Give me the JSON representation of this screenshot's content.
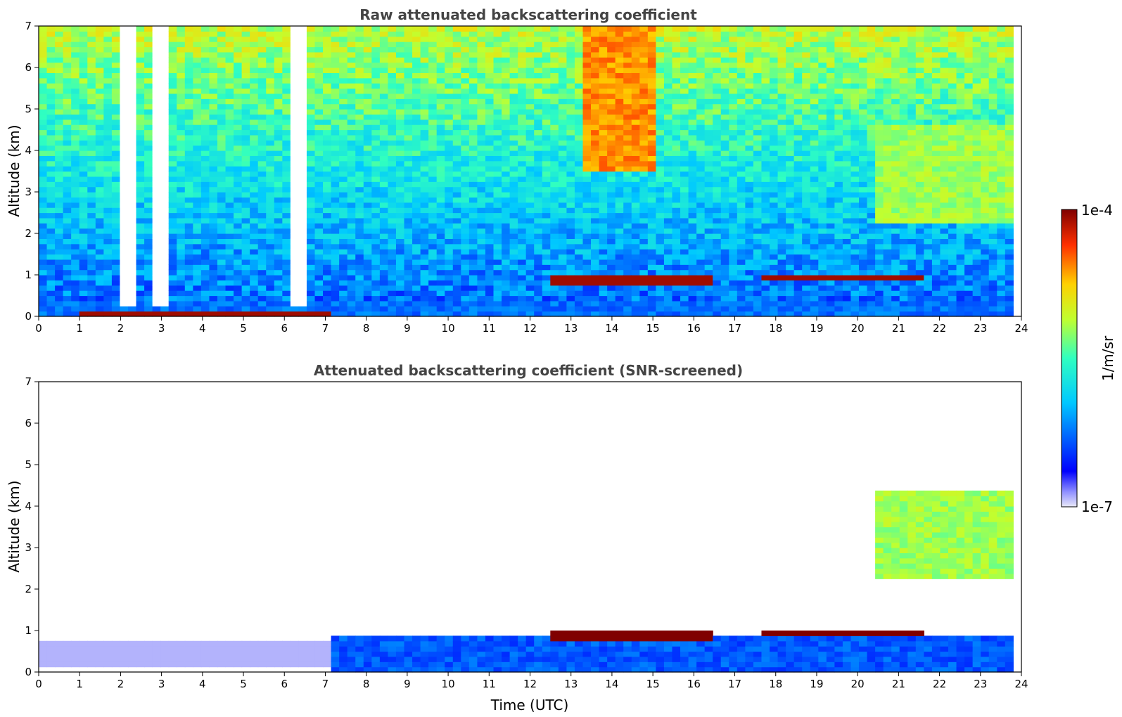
{
  "chart_data": [
    {
      "type": "heatmap",
      "title": "Raw attenuated backscattering coefficient",
      "xlabel": "",
      "ylabel": "Altitude (km)",
      "xlim": [
        0,
        24
      ],
      "ylim": [
        0,
        7
      ],
      "xticks": [
        "0",
        "1",
        "2",
        "3",
        "4",
        "5",
        "6",
        "7",
        "8",
        "9",
        "10",
        "11",
        "12",
        "13",
        "14",
        "15",
        "16",
        "17",
        "18",
        "19",
        "20",
        "21",
        "22",
        "23",
        "24"
      ],
      "yticks": [
        "0",
        "1",
        "2",
        "3",
        "4",
        "5",
        "6",
        "7"
      ],
      "data_end_time": 23.8,
      "features": [
        {
          "kind": "surface_layer",
          "x": [
            0,
            23.8
          ],
          "y": [
            0,
            0.4
          ],
          "level": 0.25
        },
        {
          "kind": "near_ground_strong_layer",
          "x": [
            0.9,
            7.1
          ],
          "y": [
            0,
            0.07
          ],
          "level": 0.97
        },
        {
          "kind": "low_signal_precipitation",
          "x": [
            1.9,
            2.3
          ],
          "y": [
            0.2,
            7
          ],
          "level": 0.0
        },
        {
          "kind": "low_signal_precipitation",
          "x": [
            2.7,
            3.2
          ],
          "y": [
            0.2,
            7
          ],
          "level": 0.0
        },
        {
          "kind": "low_signal_precipitation",
          "x": [
            6.1,
            6.5
          ],
          "y": [
            0.2,
            7
          ],
          "level": 0.0
        },
        {
          "kind": "cloud_layer",
          "x": [
            12.4,
            16.4
          ],
          "y": [
            0.78,
            1.02
          ],
          "level": 0.97
        },
        {
          "kind": "cloud_layer",
          "x": [
            17.6,
            21.7
          ],
          "y": [
            0.82,
            0.95
          ],
          "level": 0.97
        },
        {
          "kind": "cirrus",
          "x": [
            20.5,
            23.8
          ],
          "y": [
            2.2,
            4.6
          ],
          "level": 0.6
        },
        {
          "kind": "aerosol_upper",
          "x": [
            13.2,
            15.0
          ],
          "y": [
            3.5,
            7
          ],
          "level": 0.8
        }
      ]
    },
    {
      "type": "heatmap",
      "title": "Attenuated backscattering coefficient (SNR-screened)",
      "xlabel": "Time (UTC)",
      "ylabel": "Altitude (km)",
      "xlim": [
        0,
        24
      ],
      "ylim": [
        0,
        7
      ],
      "xticks": [
        "0",
        "1",
        "2",
        "3",
        "4",
        "5",
        "6",
        "7",
        "8",
        "9",
        "10",
        "11",
        "12",
        "13",
        "14",
        "15",
        "16",
        "17",
        "18",
        "19",
        "20",
        "21",
        "22",
        "23",
        "24"
      ],
      "yticks": [
        "0",
        "1",
        "2",
        "3",
        "4",
        "5",
        "6",
        "7"
      ],
      "data_end_time": 23.8,
      "features": [
        {
          "kind": "boundary_layer",
          "x": [
            7.1,
            23.8
          ],
          "y": [
            0,
            0.9
          ],
          "level": 0.22
        },
        {
          "kind": "screened_low_layer",
          "x": [
            0,
            7.1
          ],
          "y": [
            0.1,
            0.7
          ],
          "level": 0.03
        },
        {
          "kind": "cloud_layer",
          "x": [
            12.4,
            16.4
          ],
          "y": [
            0.78,
            1.02
          ],
          "level": 1.0
        },
        {
          "kind": "cloud_layer",
          "x": [
            17.6,
            21.7
          ],
          "y": [
            0.82,
            0.95
          ],
          "level": 1.0
        },
        {
          "kind": "cirrus",
          "x": [
            20.5,
            23.8
          ],
          "y": [
            2.2,
            4.4
          ],
          "level": 0.6
        }
      ]
    }
  ],
  "colorbar": {
    "label": "1/m/sr",
    "max_label": "1e-4",
    "min_label": "1e-7",
    "colormap": "jet"
  }
}
